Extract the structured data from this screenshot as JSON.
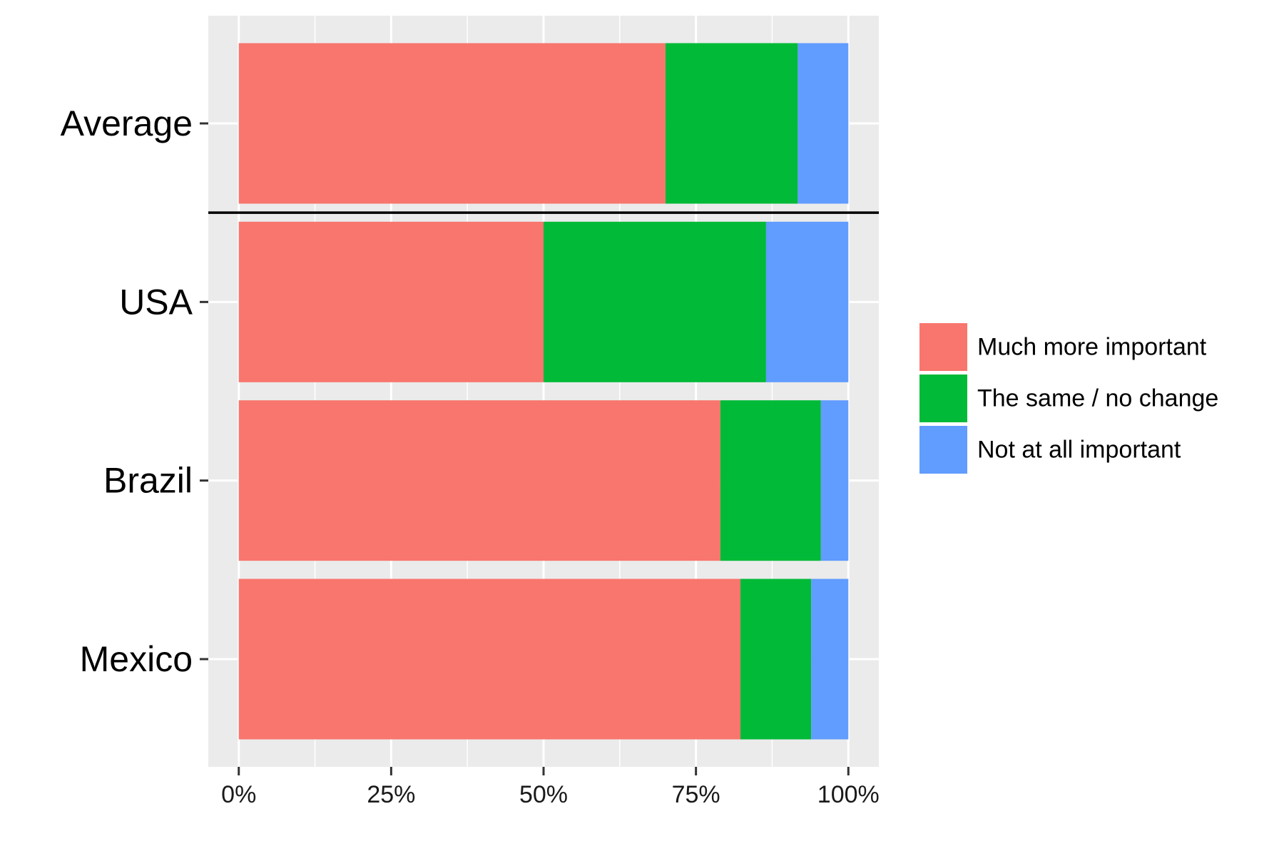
{
  "chart_data": {
    "type": "bar",
    "orientation": "horizontal",
    "stacked": true,
    "categories": [
      "Average",
      "USA",
      "Brazil",
      "Mexico"
    ],
    "series": [
      {
        "name": "Much more important",
        "values": [
          70,
          50,
          79,
          82.3
        ],
        "color": "#F8766D"
      },
      {
        "name": "The same / no change",
        "values": [
          21.7,
          36.5,
          16.5,
          11.6
        ],
        "color": "#00BA38"
      },
      {
        "name": "Not at all important",
        "values": [
          8.3,
          13.5,
          4.5,
          6.1
        ],
        "color": "#619CFF"
      }
    ],
    "xlim": [
      -5,
      105
    ],
    "x_ticks": [
      "0%",
      "25%",
      "50%",
      "75%",
      "100%"
    ],
    "x_tick_values": [
      0,
      25,
      50,
      75,
      100
    ],
    "xlabel": "",
    "ylabel": "",
    "title": "",
    "grid": true,
    "panel_background": "#EBEBEB",
    "separator_after_category": "Average",
    "legend_position": "right"
  }
}
